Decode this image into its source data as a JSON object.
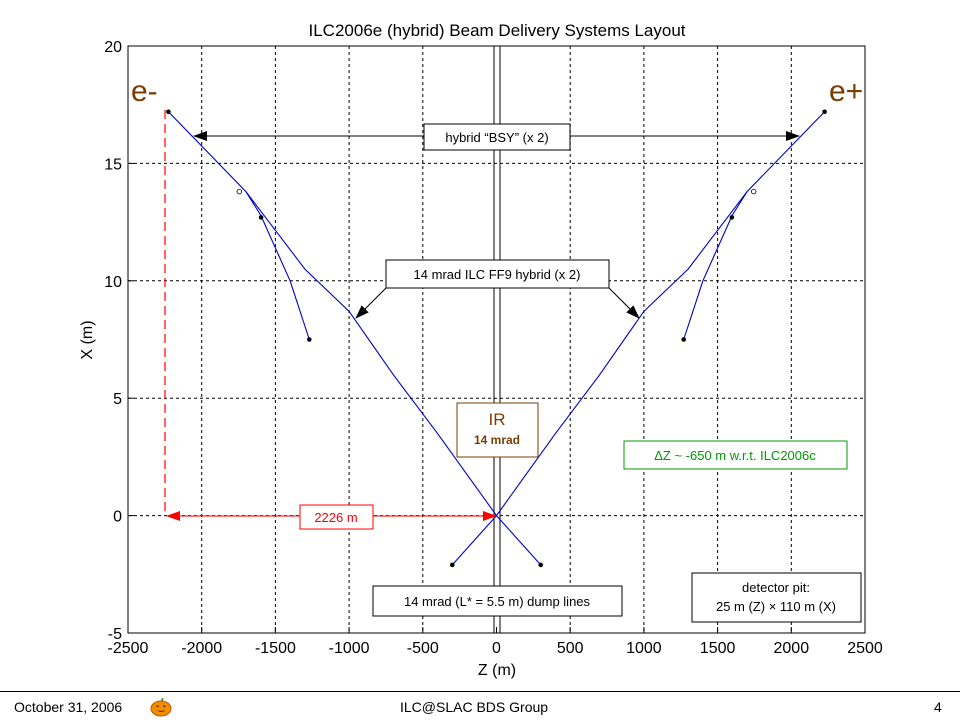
{
  "chart_data": {
    "type": "line",
    "title": "ILC2006e (hybrid) Beam Delivery Systems Layout",
    "xlabel": "Z (m)",
    "ylabel": "X (m)",
    "xlim": [
      -2500,
      2500
    ],
    "ylim": [
      -5,
      20
    ],
    "x_ticks": [
      -2500,
      -2000,
      -1500,
      -1000,
      -500,
      0,
      500,
      1000,
      1500,
      2000,
      2500
    ],
    "y_ticks": [
      -5,
      0,
      5,
      10,
      15,
      20
    ],
    "grid": true,
    "series": [
      {
        "line": "main-left",
        "color": "#0000cc",
        "points": [
          [
            -2226,
            17.2
          ],
          [
            -1700,
            13.8
          ],
          [
            -1300,
            10.5
          ],
          [
            -1000,
            8.7
          ],
          [
            -700,
            6.0
          ],
          [
            -400,
            3.5
          ],
          [
            0,
            0
          ]
        ]
      },
      {
        "line": "main-right",
        "color": "#0000cc",
        "points": [
          [
            2226,
            17.2
          ],
          [
            1700,
            13.8
          ],
          [
            1300,
            10.5
          ],
          [
            1000,
            8.7
          ],
          [
            700,
            6.0
          ],
          [
            400,
            3.5
          ],
          [
            0,
            0
          ]
        ]
      },
      {
        "line": "branch-left",
        "color": "#0000cc",
        "points": [
          [
            -1700,
            13.8
          ],
          [
            -1600,
            12.8
          ],
          [
            -1400,
            10.0
          ],
          [
            -1270,
            7.5
          ]
        ]
      },
      {
        "line": "branch-right",
        "color": "#0000cc",
        "points": [
          [
            1700,
            13.8
          ],
          [
            1600,
            12.8
          ],
          [
            1400,
            10.0
          ],
          [
            1270,
            7.5
          ]
        ]
      },
      {
        "line": "dump-left",
        "color": "#0000cc",
        "points": [
          [
            0,
            0
          ],
          [
            -300,
            -2.1
          ]
        ]
      },
      {
        "line": "dump-right",
        "color": "#0000cc",
        "points": [
          [
            0,
            0
          ],
          [
            300,
            -2.1
          ]
        ]
      }
    ],
    "markers_filled": [
      [
        -2226,
        17.2
      ],
      [
        2226,
        17.2
      ],
      [
        -1597,
        12.7
      ],
      [
        1597,
        12.7
      ],
      [
        -1270,
        7.5
      ],
      [
        1270,
        7.5
      ],
      [
        -300,
        -2.1
      ],
      [
        300,
        -2.1
      ]
    ],
    "markers_open": [
      [
        -1745,
        13.8
      ],
      [
        1745,
        13.8
      ]
    ],
    "labels": {
      "e_minus": "e-",
      "e_plus": "e+",
      "bsy": "hybrid “BSY” (x 2)",
      "ff9": "14 mrad ILC FF9 hybrid (x 2)",
      "ir": "IR",
      "ir_sub": "14 mrad",
      "dz": "ΔZ ~ -650 m w.r.t. ILC2006c",
      "distance": "2226 m",
      "dump": "14 mrad (L* = 5.5 m) dump lines",
      "pit_1": "detector pit:",
      "pit_2": "25 m (Z) × 110 m (X)"
    },
    "colors": {
      "beam": "#0000cc",
      "accent_red": "#ff0000",
      "brown": "#7a3d00",
      "green": "#009900"
    }
  },
  "footer": {
    "date": "October 31, 2006",
    "group": "ILC@SLAC BDS Group",
    "page": "4",
    "icon": "pumpkin-icon"
  }
}
